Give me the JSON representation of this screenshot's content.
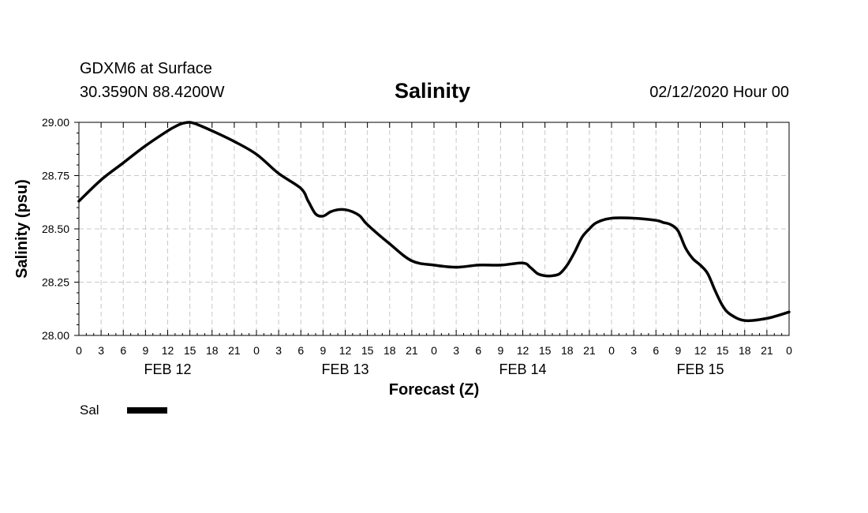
{
  "header": {
    "station": "GDXM6 at Surface",
    "coords": "30.3590N 88.4200W",
    "title": "Salinity",
    "run_time": "02/12/2020 Hour 00"
  },
  "chart_data": {
    "type": "line",
    "title": "Salinity",
    "xlabel": "Forecast (Z)",
    "ylabel": "Salinity (psu)",
    "x_unit": "forecast hour",
    "xlim": [
      0,
      96
    ],
    "ylim": [
      28.0,
      29.0
    ],
    "grid": true,
    "y_ticks": [
      "28.00",
      "28.25",
      "28.50",
      "28.75",
      "29.00"
    ],
    "x_tick_labels": [
      "0",
      "3",
      "6",
      "9",
      "12",
      "15",
      "18",
      "21",
      "0",
      "3",
      "6",
      "9",
      "12",
      "15",
      "18",
      "21",
      "0",
      "3",
      "6",
      "9",
      "12",
      "15",
      "18",
      "21",
      "0",
      "3",
      "6",
      "9",
      "12",
      "15",
      "18",
      "21",
      "0"
    ],
    "day_labels": [
      {
        "label": "FEB 12",
        "hour": 12
      },
      {
        "label": "FEB 13",
        "hour": 36
      },
      {
        "label": "FEB 14",
        "hour": 60
      },
      {
        "label": "FEB 15",
        "hour": 84
      }
    ],
    "series": [
      {
        "name": "Sal",
        "color": "#000000",
        "x": [
          0,
          3,
          6,
          9,
          12,
          13,
          14,
          15,
          16,
          18,
          21,
          24,
          27,
          30,
          31,
          32,
          33,
          34,
          35,
          36,
          37,
          38,
          39,
          42,
          45,
          48,
          51,
          54,
          57,
          60,
          61,
          62,
          63,
          64,
          65,
          66,
          67,
          68,
          69,
          70,
          72,
          75,
          78,
          79,
          80,
          81,
          82,
          83,
          84,
          85,
          86,
          87,
          88,
          90,
          93,
          96
        ],
        "values": [
          28.63,
          28.73,
          28.81,
          28.89,
          28.96,
          28.98,
          28.995,
          29.0,
          28.99,
          28.96,
          28.91,
          28.85,
          28.76,
          28.69,
          28.63,
          28.57,
          28.56,
          28.58,
          28.59,
          28.59,
          28.58,
          28.56,
          28.52,
          28.43,
          28.35,
          28.33,
          28.32,
          28.33,
          28.33,
          28.34,
          28.32,
          28.29,
          28.28,
          28.28,
          28.29,
          28.33,
          28.39,
          28.46,
          28.5,
          28.53,
          28.55,
          28.55,
          28.54,
          28.53,
          28.52,
          28.49,
          28.41,
          28.36,
          28.33,
          28.29,
          28.21,
          28.14,
          28.1,
          28.07,
          28.08,
          28.11
        ]
      }
    ]
  },
  "legend": {
    "label": "Sal"
  }
}
